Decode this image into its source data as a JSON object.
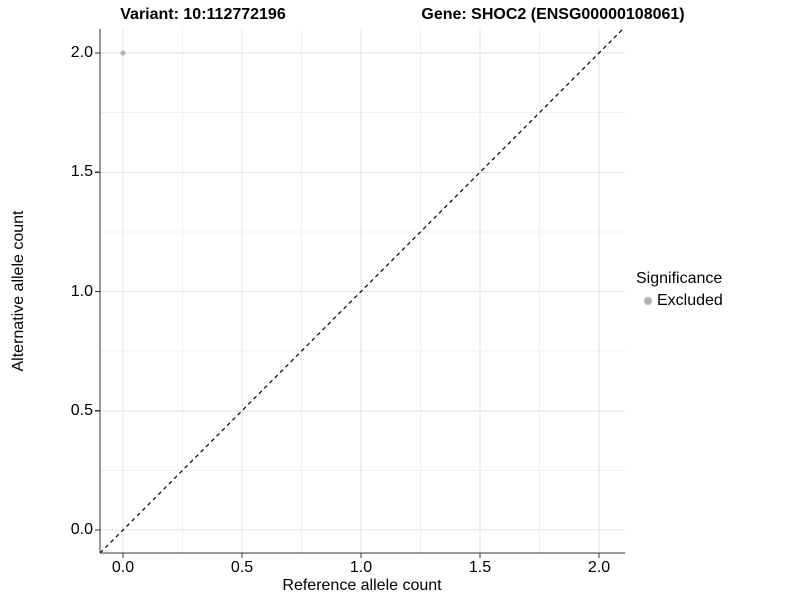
{
  "titles": {
    "variant": "Variant: 10:112772196",
    "gene": "Gene: SHOC2 (ENSG00000108061)"
  },
  "legend": {
    "title": "Significance",
    "items": [
      {
        "label": "Excluded",
        "color": "#b3b3b3"
      }
    ]
  },
  "chart_data": {
    "type": "scatter",
    "title": "Variant: 10:112772196  |  Gene: SHOC2 (ENSG00000108061)",
    "xlabel": "Reference allele count",
    "ylabel": "Alternative allele count",
    "xlim": [
      -0.1,
      2.1
    ],
    "ylim": [
      -0.1,
      2.1
    ],
    "x_ticks": [
      0.0,
      0.5,
      1.0,
      1.5,
      2.0
    ],
    "y_ticks": [
      0.0,
      0.5,
      1.0,
      1.5,
      2.0
    ],
    "x_tick_labels": [
      "0.0",
      "0.5",
      "1.0",
      "1.5",
      "2.0"
    ],
    "y_tick_labels": [
      "0.0",
      "0.5",
      "1.0",
      "1.5",
      "2.0"
    ],
    "grid": true,
    "minor_grid": true,
    "legend_position": "right",
    "legend_title": "Significance",
    "reference_line": {
      "type": "identity",
      "slope": 1,
      "intercept": 0,
      "style": "dashed",
      "color": "#000000"
    },
    "series": [
      {
        "name": "Excluded",
        "color": "#b3b3b3",
        "points": [
          {
            "x": 0.0,
            "y": 2.0
          }
        ]
      }
    ]
  },
  "colors": {
    "background": "#ffffff",
    "grid_major": "#e2e2e2",
    "grid_minor": "#f0f0f0",
    "axis_line": "#333333",
    "tick_mark": "#333333",
    "text": "#000000",
    "point": "#b3b3b3",
    "dashed_line": "#000000"
  }
}
